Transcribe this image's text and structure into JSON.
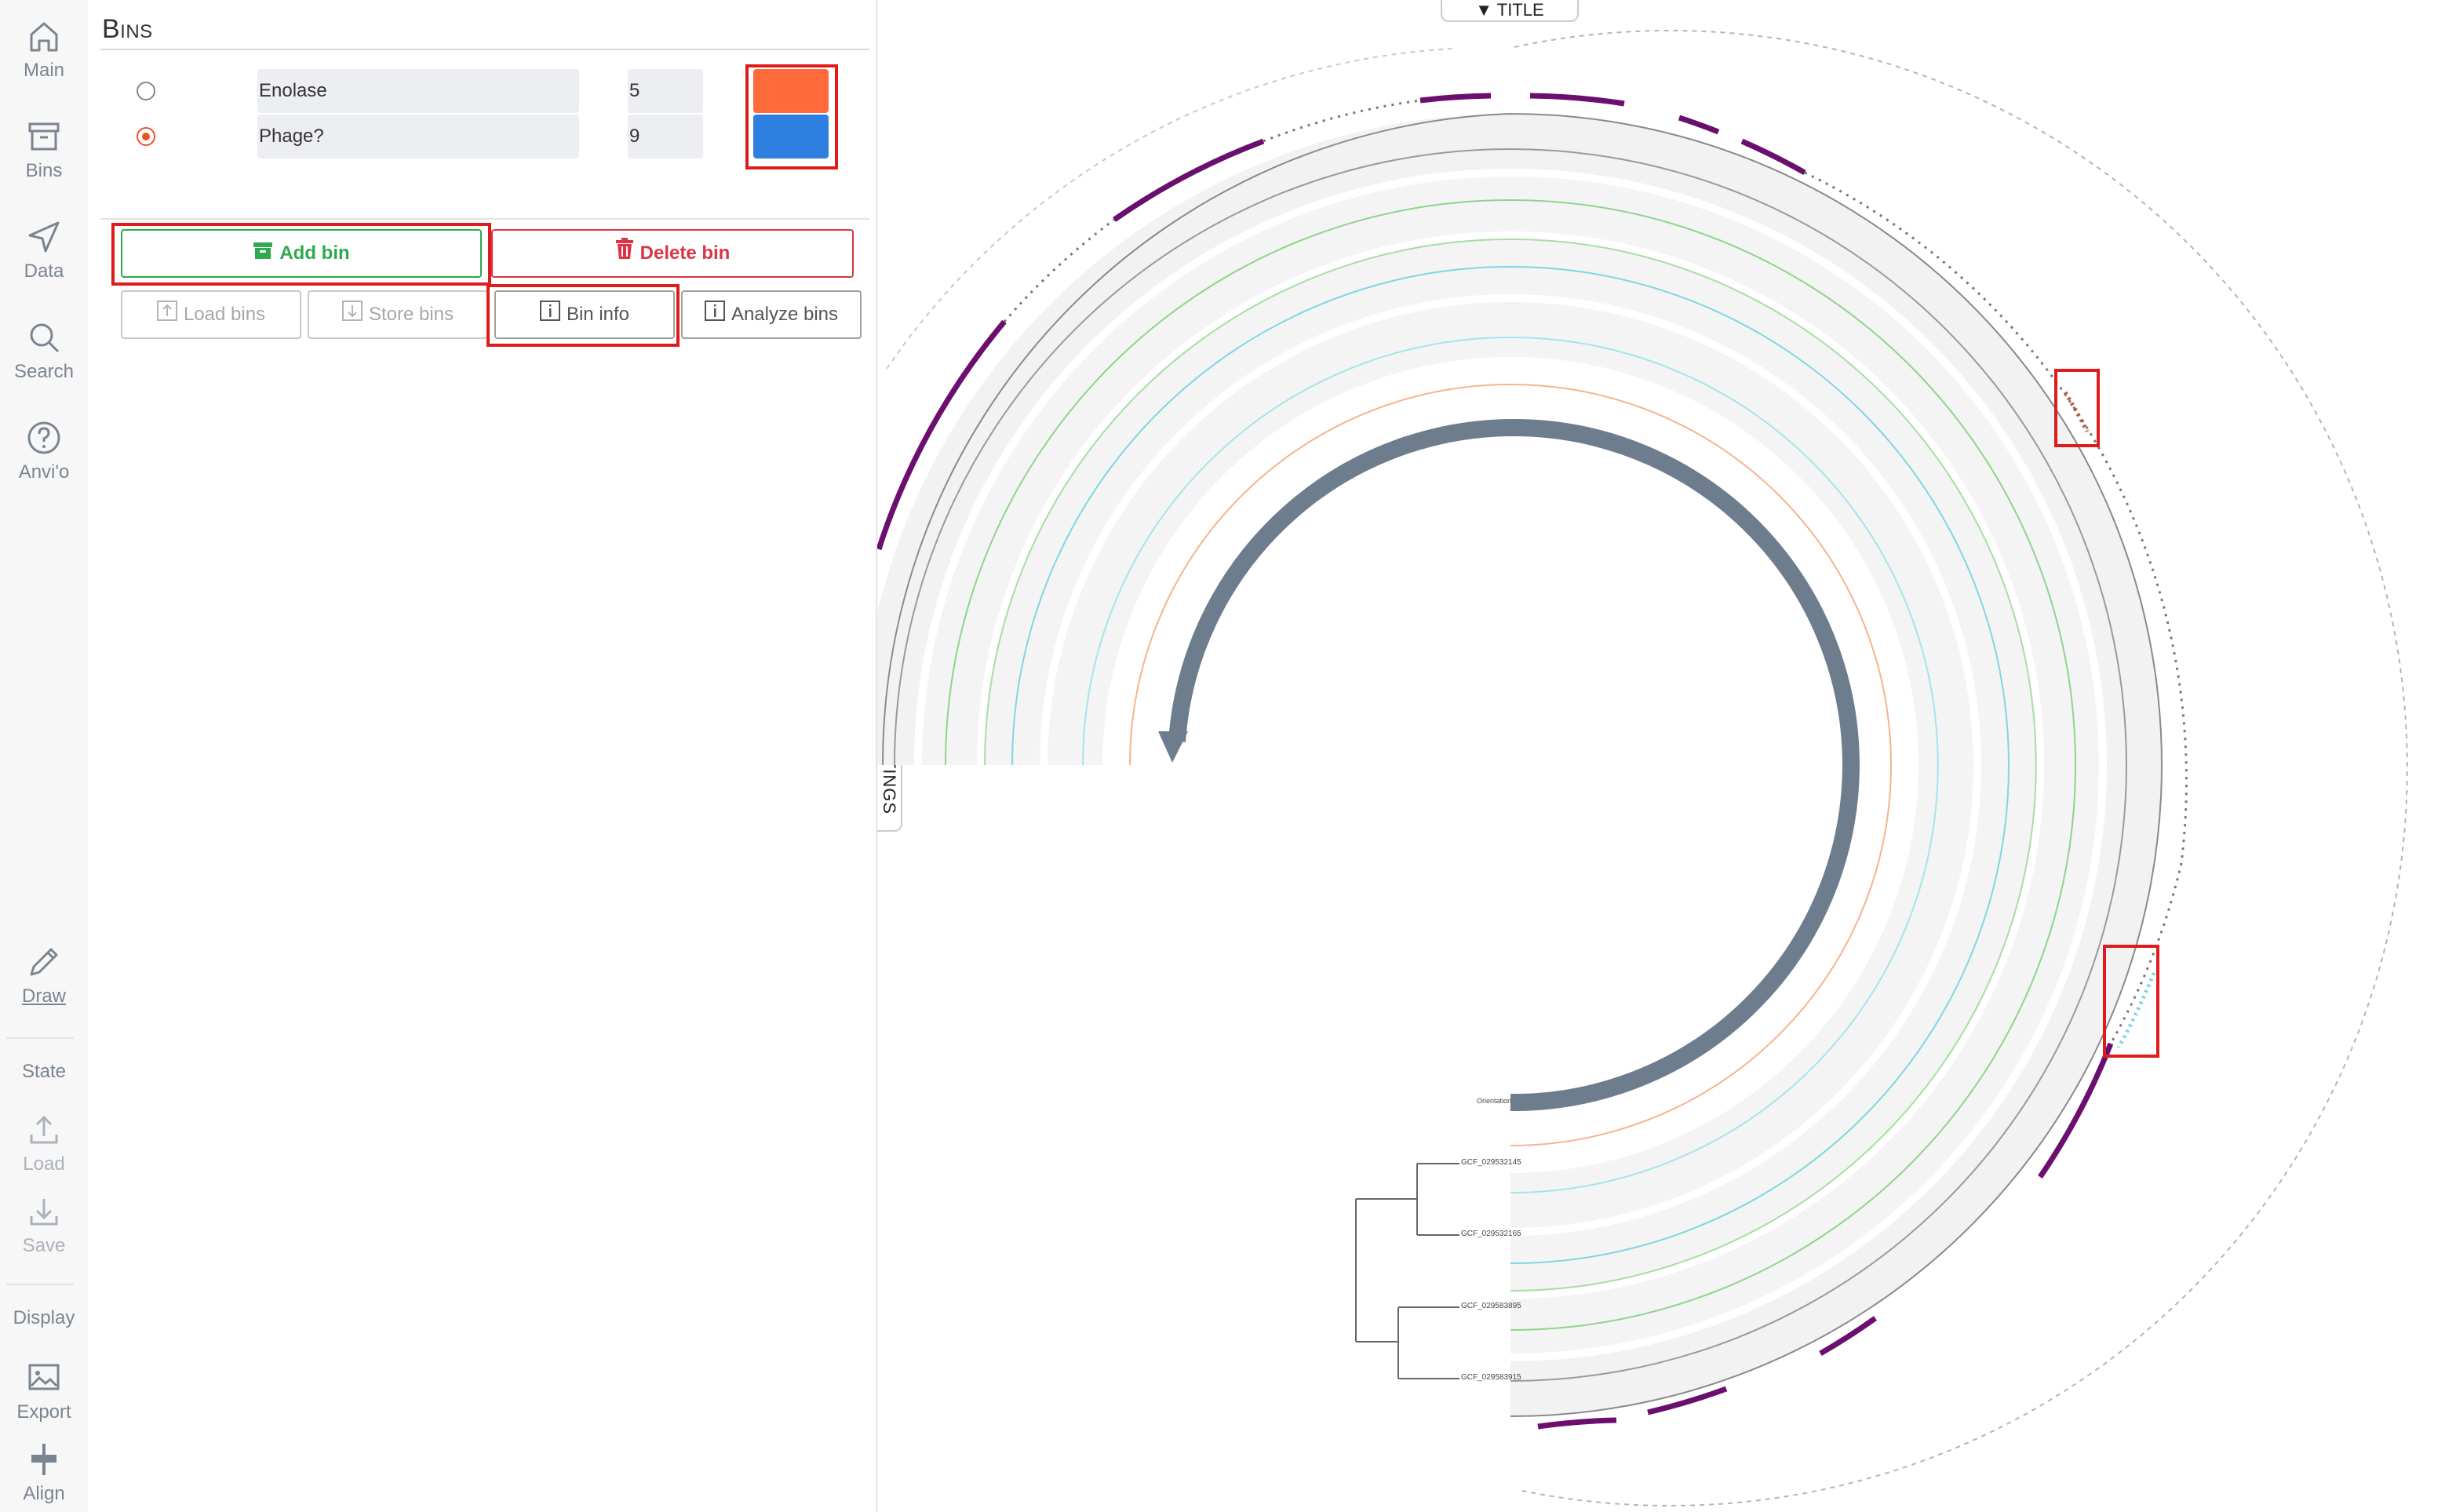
{
  "nav": {
    "main": "Main",
    "bins": "Bins",
    "data": "Data",
    "search": "Search",
    "anvio": "Anvi'o",
    "draw": "Draw",
    "state": "State",
    "load": "Load",
    "save": "Save",
    "display": "Display",
    "export": "Export",
    "align": "Align"
  },
  "bins": {
    "title": "Bins",
    "items": [
      {
        "name": "Enolase",
        "count": "5",
        "color": "#ff6a3d",
        "selected": false
      },
      {
        "name": "Phage?",
        "count": "9",
        "color": "#2f7fe0",
        "selected": true
      }
    ],
    "add_label": "Add bin",
    "delete_label": "Delete bin",
    "load_label": "Load bins",
    "store_label": "Store bins",
    "info_label": "Bin info",
    "analyze_label": "Analyze bins"
  },
  "viz": {
    "title_tab": "TITLE",
    "settings_tab": "SETTINGS",
    "orientation_label": "Orientation",
    "genomes": [
      "GCF_029532145",
      "GCF_029532165",
      "GCF_029583895",
      "GCF_029583915"
    ],
    "colors": {
      "purple": "#6b0f6f",
      "gray_track": "#f2f2f2",
      "ring_gray": "#6e7d8e",
      "green": "#8fd48a",
      "cyan": "#7fd6e2",
      "orange": "#f5b48f",
      "red_highlight": "#e01b1b"
    }
  }
}
